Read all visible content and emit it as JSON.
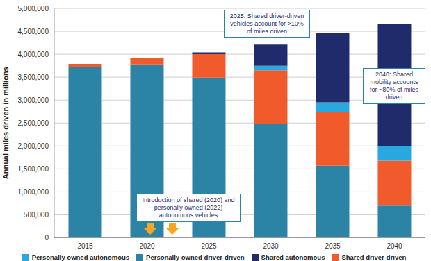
{
  "chart_data": {
    "type": "bar",
    "stacked": true,
    "grid": true,
    "legend": "bottom",
    "y_label": "Annual miles driven in millions",
    "categories": [
      "2015",
      "2020",
      "2025",
      "2030",
      "2035",
      "2040"
    ],
    "ylim": [
      0,
      5000000
    ],
    "yticks": [
      0,
      {
        "value": 500000,
        "label": "500,000"
      },
      {
        "value": 1000000,
        "label": "1,000,000"
      },
      {
        "value": 1500000,
        "label": "1,500,000"
      },
      {
        "value": 2000000,
        "label": "2,000,000"
      },
      {
        "value": 2500000,
        "label": "2,500,000"
      },
      {
        "value": 3000000,
        "label": "3,000,000"
      },
      {
        "value": 3500000,
        "label": "3,500,000"
      },
      {
        "value": 4000000,
        "label": "4,000,000"
      },
      {
        "value": 4500000,
        "label": "4,500,000"
      },
      {
        "value": 5000000,
        "label": "5,000,000"
      }
    ],
    "series": [
      {
        "name": "Personally owned driver-driven",
        "color": "#2b84a6",
        "values": [
          3720000,
          3780000,
          3490000,
          2490000,
          1570000,
          700000
        ]
      },
      {
        "name": "Shared driver-driven",
        "color": "#f15a2b",
        "values": [
          70000,
          130000,
          510000,
          1160000,
          1160000,
          980000
        ]
      },
      {
        "name": "Personally owned autonomous",
        "color": "#29a8e0",
        "values": [
          0,
          0,
          0,
          100000,
          220000,
          310000
        ]
      },
      {
        "name": "Shared autonomous",
        "color": "#1f2b6b",
        "values": [
          0,
          0,
          40000,
          460000,
          1510000,
          2670000
        ]
      }
    ],
    "annotations": [
      "2025: Shared driver-driven vehicles account for >10% of miles driven",
      "Introduction of shared (2020) and personally owned (2022) autonomous vehicles",
      "2040: Shared mobility accounts for ~80% of miles driven"
    ]
  }
}
